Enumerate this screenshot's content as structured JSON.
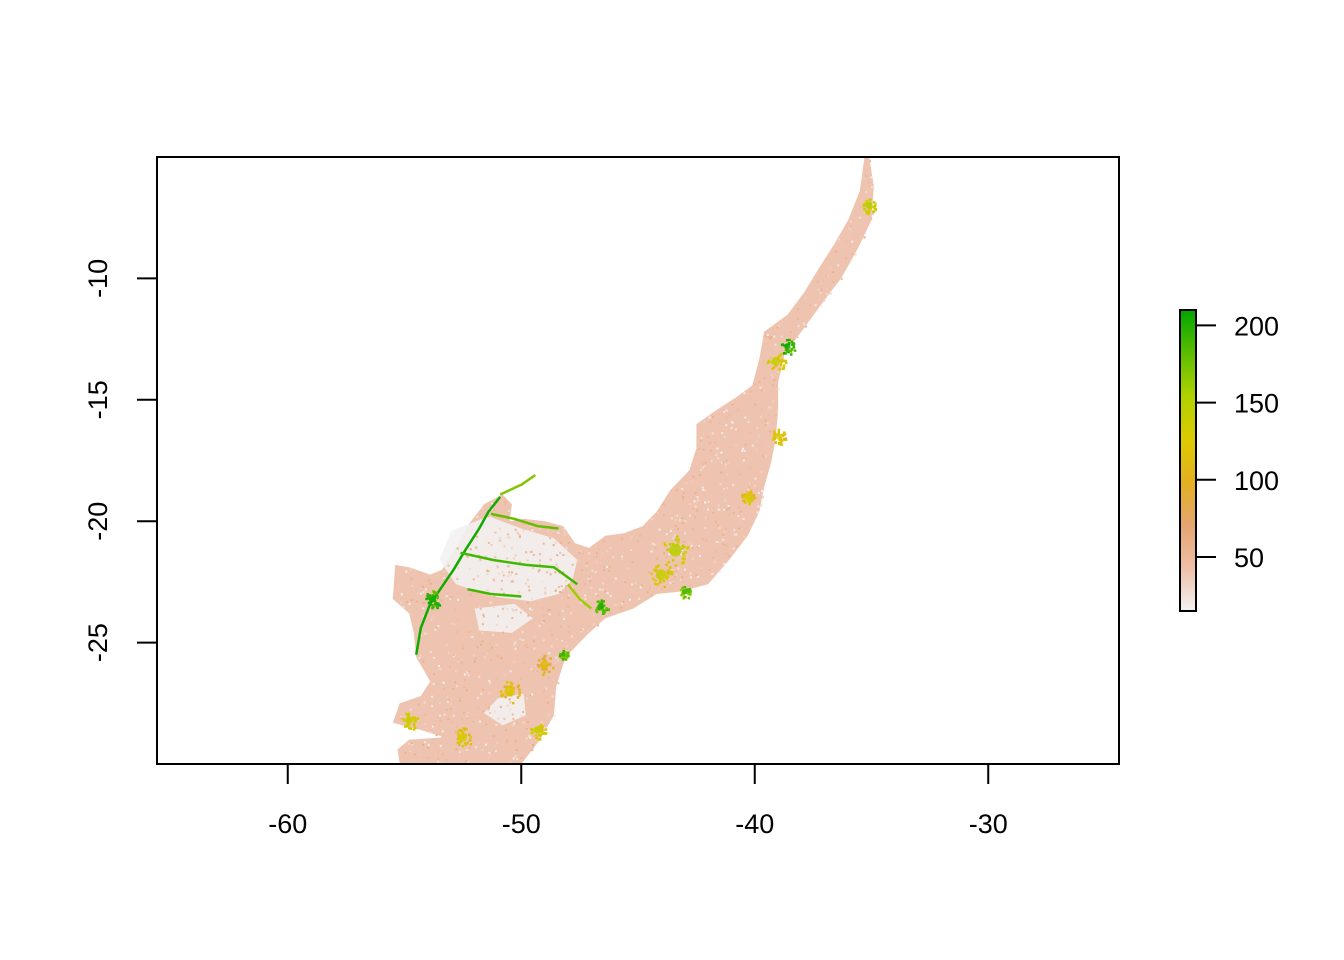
{
  "chart_data": {
    "type": "heatmap",
    "title": "",
    "xlabel": "",
    "ylabel": "",
    "xlim": [
      -65.6,
      -24.4
    ],
    "ylim": [
      -30.0,
      -5.0
    ],
    "x_ticks": [
      -60,
      -50,
      -40,
      -30
    ],
    "x_tick_labels": [
      "-60",
      "-50",
      "-40",
      "-30"
    ],
    "y_ticks": [
      -10,
      -15,
      -20,
      -25
    ],
    "y_tick_labels": [
      "-10",
      "-15",
      "-20",
      "-25"
    ],
    "legend": {
      "type": "colorbar",
      "placement": "right",
      "range": [
        15,
        210
      ],
      "ticks": [
        50,
        100,
        150,
        200
      ],
      "tick_labels": [
        "50",
        "100",
        "150",
        "200"
      ],
      "colors": [
        "#f2f2f2",
        "#eebfa8",
        "#e5a56f",
        "#e3b020",
        "#dccb00",
        "#b0d100",
        "#5bbd00",
        "#00a600"
      ]
    },
    "raster": {
      "description_units": "longitude/latitude degrees",
      "main_region": {
        "base_value": 40,
        "outline": [
          [
            -35.1,
            -5.0
          ],
          [
            -34.9,
            -6.2
          ],
          [
            -35.0,
            -7.6
          ],
          [
            -35.6,
            -8.8
          ],
          [
            -36.3,
            -10.0
          ],
          [
            -37.1,
            -11.0
          ],
          [
            -38.0,
            -12.2
          ],
          [
            -38.7,
            -13.0
          ],
          [
            -39.0,
            -14.3
          ],
          [
            -39.0,
            -15.4
          ],
          [
            -39.1,
            -16.6
          ],
          [
            -39.3,
            -17.6
          ],
          [
            -39.6,
            -18.6
          ],
          [
            -39.8,
            -19.6
          ],
          [
            -40.3,
            -20.6
          ],
          [
            -41.1,
            -21.6
          ],
          [
            -42.0,
            -22.6
          ],
          [
            -43.2,
            -22.9
          ],
          [
            -44.2,
            -23.0
          ],
          [
            -45.2,
            -23.6
          ],
          [
            -46.4,
            -24.0
          ],
          [
            -47.2,
            -24.7
          ],
          [
            -48.1,
            -25.6
          ],
          [
            -48.5,
            -26.8
          ],
          [
            -48.6,
            -28.0
          ],
          [
            -49.2,
            -29.0
          ],
          [
            -50.0,
            -30.0
          ],
          [
            -55.2,
            -30.0
          ],
          [
            -55.3,
            -29.4
          ],
          [
            -54.8,
            -29.0
          ],
          [
            -53.3,
            -28.9
          ],
          [
            -54.3,
            -28.6
          ],
          [
            -55.5,
            -28.3
          ],
          [
            -55.2,
            -27.5
          ],
          [
            -54.3,
            -27.2
          ],
          [
            -53.9,
            -26.6
          ],
          [
            -54.5,
            -25.6
          ],
          [
            -54.6,
            -24.6
          ],
          [
            -54.8,
            -23.8
          ],
          [
            -55.5,
            -23.2
          ],
          [
            -55.4,
            -21.8
          ],
          [
            -54.8,
            -21.9
          ],
          [
            -53.9,
            -22.2
          ],
          [
            -53.4,
            -22.0
          ],
          [
            -52.8,
            -21.1
          ],
          [
            -52.3,
            -20.2
          ],
          [
            -51.6,
            -19.3
          ],
          [
            -50.8,
            -18.9
          ],
          [
            -50.4,
            -19.3
          ],
          [
            -50.5,
            -20.0
          ],
          [
            -49.9,
            -19.9
          ],
          [
            -49.0,
            -20.0
          ],
          [
            -48.2,
            -20.2
          ],
          [
            -47.7,
            -20.9
          ],
          [
            -47.1,
            -21.1
          ],
          [
            -46.4,
            -20.6
          ],
          [
            -45.6,
            -20.5
          ],
          [
            -44.8,
            -20.2
          ],
          [
            -44.2,
            -19.6
          ],
          [
            -43.6,
            -18.7
          ],
          [
            -42.8,
            -17.9
          ],
          [
            -42.5,
            -17.0
          ],
          [
            -42.5,
            -16.0
          ],
          [
            -41.6,
            -15.4
          ],
          [
            -40.8,
            -14.9
          ],
          [
            -40.1,
            -14.4
          ],
          [
            -39.8,
            -13.3
          ],
          [
            -39.6,
            -12.2
          ],
          [
            -38.6,
            -11.5
          ],
          [
            -37.9,
            -10.6
          ],
          [
            -37.2,
            -9.5
          ],
          [
            -36.6,
            -8.6
          ],
          [
            -36.0,
            -7.6
          ],
          [
            -35.5,
            -6.4
          ],
          [
            -35.3,
            -5.0
          ]
        ]
      },
      "holes": [
        {
          "value": 15,
          "outline": [
            [
              -53.0,
              -20.4
            ],
            [
              -51.4,
              -19.8
            ],
            [
              -50.0,
              -20.3
            ],
            [
              -48.6,
              -20.7
            ],
            [
              -47.6,
              -21.6
            ],
            [
              -47.8,
              -22.4
            ],
            [
              -48.4,
              -23.0
            ],
            [
              -49.6,
              -23.3
            ],
            [
              -51.2,
              -23.1
            ],
            [
              -52.8,
              -22.6
            ],
            [
              -53.5,
              -21.6
            ]
          ]
        },
        {
          "value": 15,
          "outline": [
            [
              -52.0,
              -23.6
            ],
            [
              -50.3,
              -23.4
            ],
            [
              -49.5,
              -24.0
            ],
            [
              -50.4,
              -24.6
            ],
            [
              -51.8,
              -24.5
            ]
          ]
        },
        {
          "value": 15,
          "outline": [
            [
              -51.0,
              -27.3
            ],
            [
              -49.9,
              -27.1
            ],
            [
              -49.8,
              -28.0
            ],
            [
              -50.8,
              -28.4
            ],
            [
              -51.6,
              -27.9
            ]
          ]
        }
      ],
      "hotspots": [
        {
          "lon": -38.6,
          "lat": -12.8,
          "value": 205,
          "radius": 0.3
        },
        {
          "lon": -53.8,
          "lat": -23.2,
          "value": 205,
          "radius": 0.35
        },
        {
          "lon": -46.6,
          "lat": -23.5,
          "value": 200,
          "radius": 0.3
        },
        {
          "lon": -48.2,
          "lat": -25.5,
          "value": 195,
          "radius": 0.2
        },
        {
          "lon": -43.4,
          "lat": -21.2,
          "value": 150,
          "radius": 0.6
        },
        {
          "lon": -44.0,
          "lat": -22.2,
          "value": 140,
          "radius": 0.5
        },
        {
          "lon": -39.1,
          "lat": -13.4,
          "value": 140,
          "radius": 0.4
        },
        {
          "lon": -39.0,
          "lat": -16.5,
          "value": 130,
          "radius": 0.3
        },
        {
          "lon": -40.3,
          "lat": -19.0,
          "value": 130,
          "radius": 0.3
        },
        {
          "lon": -43.0,
          "lat": -22.9,
          "value": 190,
          "radius": 0.25
        },
        {
          "lon": -35.1,
          "lat": -7.0,
          "value": 150,
          "radius": 0.3
        },
        {
          "lon": -49.0,
          "lat": -25.9,
          "value": 110,
          "radius": 0.4
        },
        {
          "lon": -50.5,
          "lat": -27.0,
          "value": 120,
          "radius": 0.5
        },
        {
          "lon": -49.3,
          "lat": -28.6,
          "value": 140,
          "radius": 0.35
        },
        {
          "lon": -54.8,
          "lat": -28.2,
          "value": 140,
          "radius": 0.35
        },
        {
          "lon": -52.5,
          "lat": -28.9,
          "value": 130,
          "radius": 0.4
        }
      ],
      "rivers": [
        {
          "value": 205,
          "points": [
            [
              -54.5,
              -25.5
            ],
            [
              -54.3,
              -24.4
            ],
            [
              -53.9,
              -23.4
            ],
            [
              -53.4,
              -22.7
            ],
            [
              -52.9,
              -22.0
            ],
            [
              -52.4,
              -21.2
            ],
            [
              -51.8,
              -20.3
            ],
            [
              -51.4,
              -19.6
            ],
            [
              -50.9,
              -19.0
            ]
          ]
        },
        {
          "value": 190,
          "points": [
            [
              -52.6,
              -21.3
            ],
            [
              -51.2,
              -21.6
            ],
            [
              -49.8,
              -21.8
            ],
            [
              -48.6,
              -21.9
            ],
            [
              -47.6,
              -22.6
            ]
          ]
        },
        {
          "value": 190,
          "points": [
            [
              -52.3,
              -22.8
            ],
            [
              -51.3,
              -23.0
            ],
            [
              -50.0,
              -23.1
            ]
          ]
        },
        {
          "value": 180,
          "points": [
            [
              -51.3,
              -19.7
            ],
            [
              -50.3,
              -19.9
            ],
            [
              -49.3,
              -20.2
            ],
            [
              -48.4,
              -20.3
            ]
          ]
        },
        {
          "value": 170,
          "points": [
            [
              -50.9,
              -18.9
            ],
            [
              -50.0,
              -18.5
            ],
            [
              -49.4,
              -18.1
            ]
          ]
        },
        {
          "value": 160,
          "points": [
            [
              -48.0,
              -22.6
            ],
            [
              -47.5,
              -23.2
            ],
            [
              -47.0,
              -23.6
            ]
          ]
        }
      ]
    }
  }
}
